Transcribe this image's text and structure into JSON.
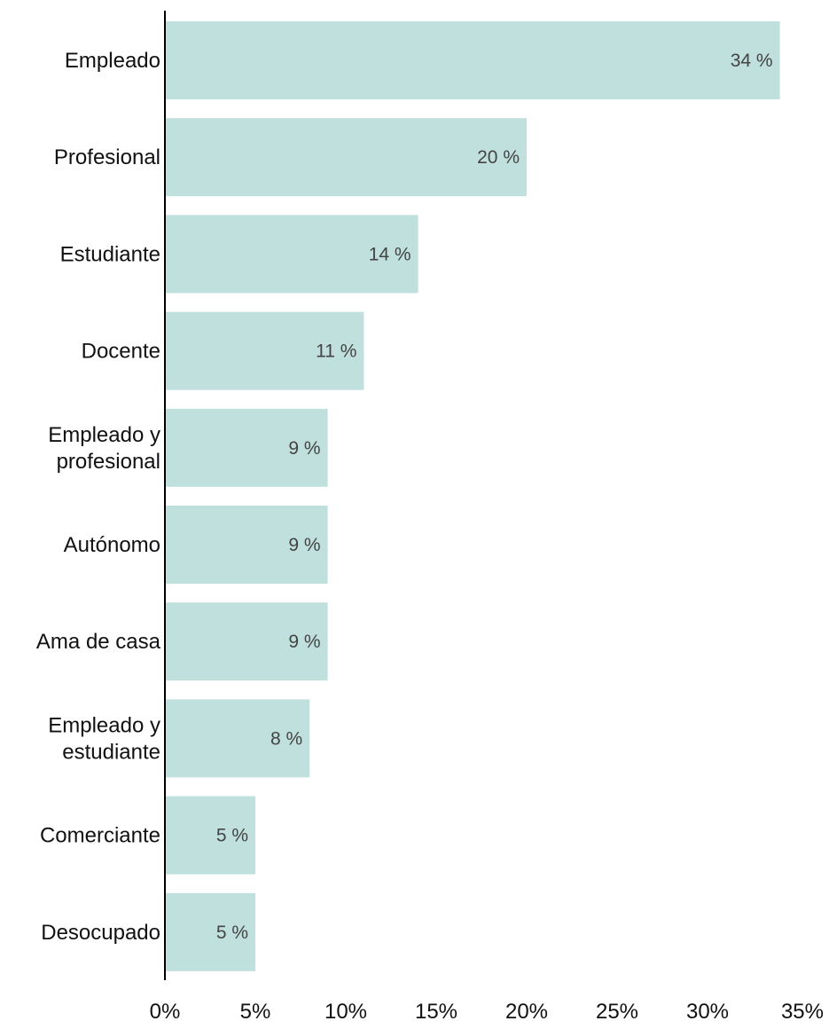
{
  "chart_data": {
    "type": "bar",
    "orientation": "horizontal",
    "categories": [
      [
        "Empleado"
      ],
      [
        "Profesional"
      ],
      [
        "Estudiante"
      ],
      [
        "Docente"
      ],
      [
        "Empleado y",
        "profesional"
      ],
      [
        "Autónomo"
      ],
      [
        "Ama de casa"
      ],
      [
        "Empleado y",
        "estudiante"
      ],
      [
        "Comerciante"
      ],
      [
        "Desocupado"
      ]
    ],
    "values": [
      34,
      20,
      14,
      11,
      9,
      9,
      9,
      8,
      5,
      5
    ],
    "value_labels": [
      "34 %",
      "20 %",
      "14 %",
      "11 %",
      "9 %",
      "9 %",
      "9 %",
      "8 %",
      "5 %",
      "5 %"
    ],
    "xlim": [
      0,
      35
    ],
    "xticks": [
      0,
      5,
      10,
      15,
      20,
      25,
      30,
      35
    ],
    "xtick_labels": [
      "0%",
      "5%",
      "10%",
      "15%",
      "20%",
      "25%",
      "30%",
      "35%"
    ],
    "title": "",
    "xlabel": "",
    "ylabel": "",
    "grid": false,
    "legend": "none",
    "bar_color": "#bfe0dc",
    "axis_color": "#000000"
  }
}
